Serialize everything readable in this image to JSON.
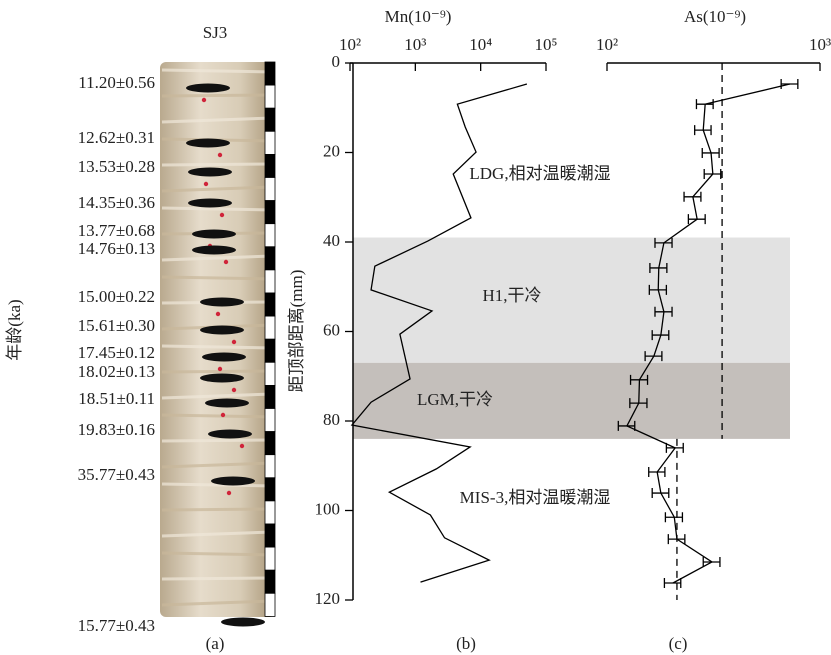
{
  "core": {
    "title": "SJ3",
    "ylabel": "年龄(ka)",
    "panel_label": "(a)",
    "ages": [
      "11.20±0.56",
      "12.62±0.31",
      "13.53±0.28",
      "14.35±0.36",
      "13.77±0.68",
      "14.76±0.13",
      "15.00±0.22",
      "15.61±0.30",
      "17.45±0.12",
      "18.02±0.13",
      "18.51±0.11",
      "19.83±0.16",
      "35.77±0.43",
      "15.77±0.43"
    ]
  },
  "chart_data": [
    {
      "type": "line",
      "title": "Mn(10⁻⁹)",
      "panel_label": "(b)",
      "ylabel": "距顶部距离(mm)",
      "xscale": "log",
      "xlim": [
        100,
        100000
      ],
      "xticks": [
        {
          "value": 100,
          "label": "10²"
        },
        {
          "value": 1000,
          "label": "10³"
        },
        {
          "value": 10000,
          "label": "10⁴"
        },
        {
          "value": 100000,
          "label": "10⁵"
        }
      ],
      "ylim": [
        0,
        120
      ],
      "yticks": [
        0,
        20,
        40,
        60,
        80,
        100,
        120
      ],
      "color": "#000000",
      "depth": [
        4.7,
        9.2,
        14.3,
        19.9,
        24.8,
        34.6,
        39.8,
        45.4,
        50.7,
        55.4,
        60.6,
        70.6,
        75.8,
        80.9,
        85.8,
        90.7,
        95.9,
        101.0,
        106.1,
        111.1,
        116.0
      ],
      "values": [
        51000,
        4400,
        5800,
        8500,
        3800,
        7100,
        1550,
        240,
        210,
        1800,
        580,
        830,
        210,
        107,
        6900,
        2100,
        400,
        1700,
        2800,
        13500,
        1200
      ],
      "bands": [
        {
          "from": 39,
          "to": 67,
          "label": "H1,干冷",
          "color": "#e2e2e2"
        },
        {
          "from": 67,
          "to": 84,
          "label": "LGM,干冷",
          "color": "#c4bfbb"
        }
      ],
      "annotations": [
        "LDG,相对温暖潮湿",
        "MIS-3,相对温暖潮湿"
      ]
    },
    {
      "type": "errorbar",
      "title": "As(10⁻⁹)",
      "panel_label": "(c)",
      "xscale": "log",
      "xlim": [
        100,
        1000
      ],
      "xticks": [
        {
          "value": 100,
          "label": "10²"
        },
        {
          "value": 1000,
          "label": "10³"
        }
      ],
      "ylim": [
        0,
        120
      ],
      "color": "#000000",
      "depth": [
        4.7,
        9.2,
        15.0,
        20.1,
        24.8,
        29.9,
        34.9,
        40.2,
        45.8,
        50.7,
        55.6,
        60.8,
        65.5,
        70.8,
        76.0,
        81.1,
        86.0,
        91.4,
        96.1,
        101.5,
        106.4,
        111.5,
        116.2
      ],
      "values": [
        722,
        289,
        283,
        308,
        314,
        253,
        265,
        185,
        175,
        174,
        185,
        179,
        166,
        142,
        141,
        124,
        209,
        172,
        179,
        207,
        213,
        311,
        204
      ],
      "errors": [
        65,
        26,
        25,
        28,
        28,
        23,
        24,
        17,
        16,
        16,
        17,
        16,
        15,
        13,
        13,
        11,
        19,
        15,
        16,
        19,
        19,
        28,
        18
      ],
      "reference_lines": [
        {
          "value": 347,
          "from": 0,
          "to": 84
        },
        {
          "value": 213,
          "from": 84,
          "to": 120
        }
      ]
    }
  ]
}
